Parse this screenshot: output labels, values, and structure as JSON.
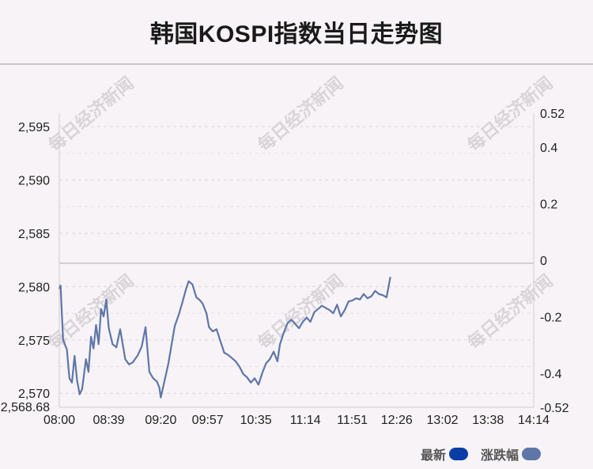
{
  "title": "韩国KOSPI指数当日走势图",
  "watermark": "每日经济新闻",
  "legend": [
    {
      "label": "最新",
      "color": "#0b3da8"
    },
    {
      "label": "涨跌幅",
      "color": "#5f76a8"
    }
  ],
  "chart_data": {
    "type": "line",
    "title": "韩国KOSPI指数当日走势图",
    "x_tick_labels": [
      "08:00",
      "08:39",
      "09:20",
      "09:57",
      "10:35",
      "11:14",
      "11:51",
      "12:26",
      "13:02",
      "13:38",
      "14:14"
    ],
    "y_left": {
      "ticks": [
        2570,
        2575,
        2580,
        2585,
        2590,
        2595
      ],
      "tick_labels": [
        "2,570",
        "2,575",
        "2,580",
        "2,585",
        "2,590",
        "2,595"
      ],
      "min": 2568.68,
      "min_label": "2,568.68",
      "max": 2596.27
    },
    "y_right": {
      "ticks": [
        0.52,
        0.4,
        0.2,
        0,
        -0.2,
        -0.4,
        -0.52
      ],
      "tick_labels": [
        "0.52",
        "0.4",
        "0.2",
        "0",
        "-0.2",
        "-0.4",
        "-0.52"
      ],
      "min": -0.52,
      "max": 0.52
    },
    "reference_level": 2582.2,
    "grid": true,
    "line_color": "#5f76a8",
    "series": [
      {
        "name": "最新",
        "points": [
          [
            "08:00",
            2579.8
          ],
          [
            "08:01",
            2580.1
          ],
          [
            "08:03",
            2575.0
          ],
          [
            "08:06",
            2574.1
          ],
          [
            "08:08",
            2571.4
          ],
          [
            "08:10",
            2571.0
          ],
          [
            "08:12",
            2573.5
          ],
          [
            "08:14",
            2571.2
          ],
          [
            "08:16",
            2569.9
          ],
          [
            "08:18",
            2570.4
          ],
          [
            "08:21",
            2573.2
          ],
          [
            "08:23",
            2572.0
          ],
          [
            "08:25",
            2575.3
          ],
          [
            "08:27",
            2574.2
          ],
          [
            "08:29",
            2576.4
          ],
          [
            "08:31",
            2574.6
          ],
          [
            "08:33",
            2577.9
          ],
          [
            "08:35",
            2577.2
          ],
          [
            "08:37",
            2578.8
          ],
          [
            "08:39",
            2576.1
          ],
          [
            "08:42",
            2574.6
          ],
          [
            "08:45",
            2574.3
          ],
          [
            "08:48",
            2576.0
          ],
          [
            "08:52",
            2573.2
          ],
          [
            "08:55",
            2572.7
          ],
          [
            "08:58",
            2572.9
          ],
          [
            "09:02",
            2573.6
          ],
          [
            "09:05",
            2574.4
          ],
          [
            "09:08",
            2576.2
          ],
          [
            "09:11",
            2572.0
          ],
          [
            "09:14",
            2571.4
          ],
          [
            "09:17",
            2571.1
          ],
          [
            "09:19",
            2570.5
          ],
          [
            "09:20",
            2569.6
          ],
          [
            "09:23",
            2571.2
          ],
          [
            "09:26",
            2572.8
          ],
          [
            "09:29",
            2574.9
          ],
          [
            "09:31",
            2576.3
          ],
          [
            "09:34",
            2577.3
          ],
          [
            "09:37",
            2578.5
          ],
          [
            "09:40",
            2579.8
          ],
          [
            "09:42",
            2580.5
          ],
          [
            "09:45",
            2580.2
          ],
          [
            "09:48",
            2579.0
          ],
          [
            "09:51",
            2578.7
          ],
          [
            "09:53",
            2578.4
          ],
          [
            "09:56",
            2577.5
          ],
          [
            "09:58",
            2576.2
          ],
          [
            "10:01",
            2575.8
          ],
          [
            "10:04",
            2576.0
          ],
          [
            "10:07",
            2574.9
          ],
          [
            "10:10",
            2573.8
          ],
          [
            "10:13",
            2573.6
          ],
          [
            "10:16",
            2573.3
          ],
          [
            "10:19",
            2573.0
          ],
          [
            "10:22",
            2572.5
          ],
          [
            "10:25",
            2571.8
          ],
          [
            "10:28",
            2571.5
          ],
          [
            "10:31",
            2571.0
          ],
          [
            "10:34",
            2571.4
          ],
          [
            "10:37",
            2570.8
          ],
          [
            "10:40",
            2571.9
          ],
          [
            "10:43",
            2572.8
          ],
          [
            "10:46",
            2573.2
          ],
          [
            "10:49",
            2573.9
          ],
          [
            "10:52",
            2573.0
          ],
          [
            "10:54",
            2574.6
          ],
          [
            "10:57",
            2575.7
          ],
          [
            "11:00",
            2576.6
          ],
          [
            "11:03",
            2576.9
          ],
          [
            "11:06",
            2576.5
          ],
          [
            "11:09",
            2576.1
          ],
          [
            "11:12",
            2576.7
          ],
          [
            "11:15",
            2577.1
          ],
          [
            "11:18",
            2576.7
          ],
          [
            "11:21",
            2577.6
          ],
          [
            "11:24",
            2577.9
          ],
          [
            "11:27",
            2578.2
          ],
          [
            "11:30",
            2578.0
          ],
          [
            "11:33",
            2577.8
          ],
          [
            "11:36",
            2577.5
          ],
          [
            "11:39",
            2578.3
          ],
          [
            "11:42",
            2577.2
          ],
          [
            "11:45",
            2577.8
          ],
          [
            "11:48",
            2578.6
          ],
          [
            "11:51",
            2578.7
          ],
          [
            "11:54",
            2578.9
          ],
          [
            "11:57",
            2578.8
          ],
          [
            "12:00",
            2579.3
          ],
          [
            "12:03",
            2578.9
          ],
          [
            "12:06",
            2579.1
          ],
          [
            "12:09",
            2579.6
          ],
          [
            "12:12",
            2579.3
          ],
          [
            "12:15",
            2579.2
          ],
          [
            "12:18",
            2579.0
          ],
          [
            "12:21",
            2580.9
          ]
        ]
      }
    ]
  }
}
